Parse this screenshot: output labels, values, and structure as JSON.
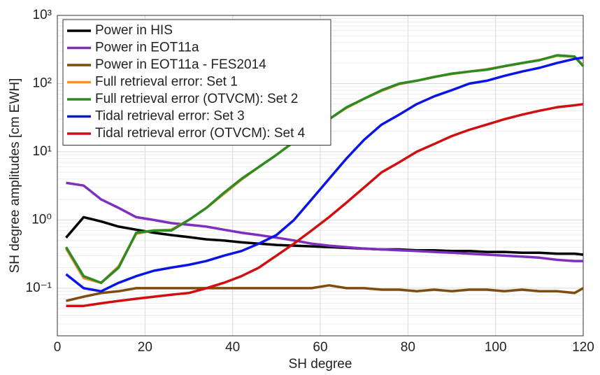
{
  "chart_data": {
    "type": "line",
    "xlabel": "SH degree",
    "ylabel": "SH degree amplitudes [cm EWH]",
    "xlim": [
      0,
      120
    ],
    "xticks": [
      0,
      20,
      40,
      60,
      80,
      100,
      120
    ],
    "ylim": [
      0.02,
      1000
    ],
    "yticks": [
      {
        "value": 0.1,
        "label": "10⁻¹"
      },
      {
        "value": 1,
        "label": "10⁰"
      },
      {
        "value": 10,
        "label": "10¹"
      },
      {
        "value": 100,
        "label": "10²"
      },
      {
        "value": 1000,
        "label": "10³"
      }
    ],
    "log_y": true,
    "grid": true,
    "minor_grid": true,
    "legend": "upper-left",
    "x": [
      2,
      6,
      10,
      14,
      18,
      22,
      26,
      30,
      34,
      38,
      42,
      46,
      50,
      54,
      58,
      62,
      66,
      70,
      74,
      78,
      82,
      86,
      90,
      94,
      98,
      102,
      106,
      110,
      114,
      118,
      120
    ],
    "series": [
      {
        "name": "Power in HIS",
        "color": "#000000",
        "values": [
          0.55,
          1.1,
          0.95,
          0.8,
          0.72,
          0.65,
          0.6,
          0.56,
          0.52,
          0.5,
          0.47,
          0.45,
          0.43,
          0.42,
          0.41,
          0.4,
          0.39,
          0.38,
          0.37,
          0.37,
          0.36,
          0.36,
          0.35,
          0.35,
          0.34,
          0.34,
          0.33,
          0.33,
          0.32,
          0.32,
          0.31
        ]
      },
      {
        "name": "Power in EOT11a",
        "color": "#7e2fbe",
        "values": [
          3.5,
          3.2,
          2,
          1.5,
          1.1,
          1.0,
          0.9,
          0.85,
          0.8,
          0.72,
          0.65,
          0.6,
          0.55,
          0.5,
          0.45,
          0.42,
          0.4,
          0.38,
          0.37,
          0.36,
          0.35,
          0.34,
          0.33,
          0.32,
          0.31,
          0.3,
          0.29,
          0.28,
          0.26,
          0.25,
          0.25
        ]
      },
      {
        "name": "Power in EOT11a - FES2014",
        "color": "#7f4c10",
        "values": [
          0.065,
          0.075,
          0.085,
          0.09,
          0.1,
          0.1,
          0.1,
          0.1,
          0.1,
          0.1,
          0.1,
          0.1,
          0.1,
          0.1,
          0.1,
          0.11,
          0.1,
          0.1,
          0.095,
          0.095,
          0.09,
          0.095,
          0.09,
          0.095,
          0.095,
          0.09,
          0.095,
          0.09,
          0.09,
          0.085,
          0.1
        ]
      },
      {
        "name": "Full retrieval error: Set 1",
        "color": "#f0903a",
        "values": [
          0.38,
          0.14,
          0.12,
          0.21,
          0.63,
          0.7,
          0.72,
          1.0,
          1.5,
          2.4,
          3.9,
          6,
          9,
          14,
          20,
          30,
          44,
          60,
          78,
          98,
          110,
          125,
          138,
          150,
          162,
          180,
          200,
          222,
          255,
          248,
          185
        ]
      },
      {
        "name": "Full retrieval error (OTVCM): Set 2",
        "color": "#2e8b22",
        "values": [
          0.4,
          0.15,
          0.12,
          0.2,
          0.65,
          0.7,
          0.7,
          1.0,
          1.5,
          2.5,
          4,
          6,
          9,
          14,
          20,
          30,
          45,
          60,
          80,
          100,
          110,
          125,
          140,
          150,
          160,
          180,
          200,
          220,
          260,
          250,
          180
        ]
      },
      {
        "name": "Tidal retrieval error: Set 3",
        "color": "#0a14e6",
        "values": [
          0.16,
          0.1,
          0.09,
          0.12,
          0.15,
          0.18,
          0.2,
          0.22,
          0.25,
          0.3,
          0.35,
          0.45,
          0.6,
          1.0,
          2.0,
          4,
          8,
          15,
          25,
          35,
          50,
          65,
          80,
          100,
          110,
          130,
          150,
          170,
          200,
          230,
          240
        ]
      },
      {
        "name": "Tidal retrieval error (OTVCM): Set 4",
        "color": "#d01010",
        "values": [
          0.055,
          0.055,
          0.06,
          0.065,
          0.07,
          0.075,
          0.08,
          0.085,
          0.1,
          0.12,
          0.15,
          0.2,
          0.3,
          0.45,
          0.7,
          1.1,
          1.8,
          3,
          5,
          7,
          10,
          13,
          17,
          21,
          25,
          30,
          35,
          40,
          45,
          48,
          50
        ]
      }
    ]
  }
}
